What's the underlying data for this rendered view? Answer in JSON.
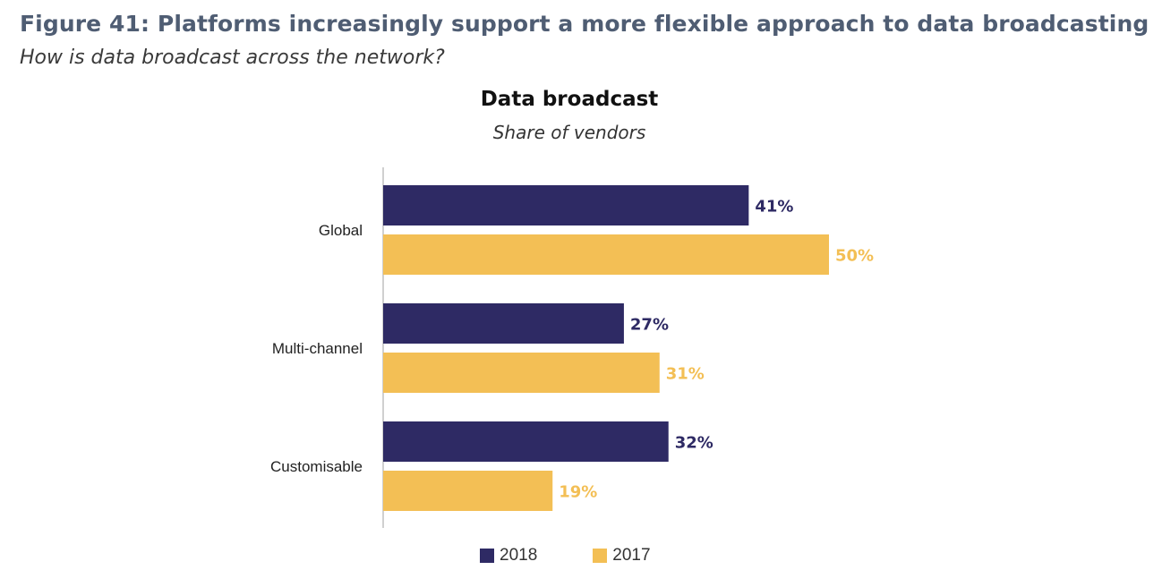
{
  "figure": {
    "title": "Figure 41: Platforms increasingly support a more flexible approach to data broadcasting",
    "subtitle": "How is data broadcast across the network?"
  },
  "chart_data": {
    "type": "bar",
    "orientation": "horizontal",
    "title": "Data broadcast",
    "subtitle": "Share of vendors",
    "categories": [
      "Global",
      "Multi-channel",
      "Customisable"
    ],
    "series": [
      {
        "name": "2018",
        "color": "#2e2a64",
        "values": [
          41,
          27,
          32
        ],
        "labels": [
          "41%",
          "27%",
          "32%"
        ]
      },
      {
        "name": "2017",
        "color": "#f3bf55",
        "values": [
          50,
          31,
          19
        ],
        "labels": [
          "50%",
          "31%",
          "19%"
        ]
      }
    ],
    "xlim": [
      0,
      100
    ],
    "grid": false,
    "legend_position": "bottom"
  }
}
